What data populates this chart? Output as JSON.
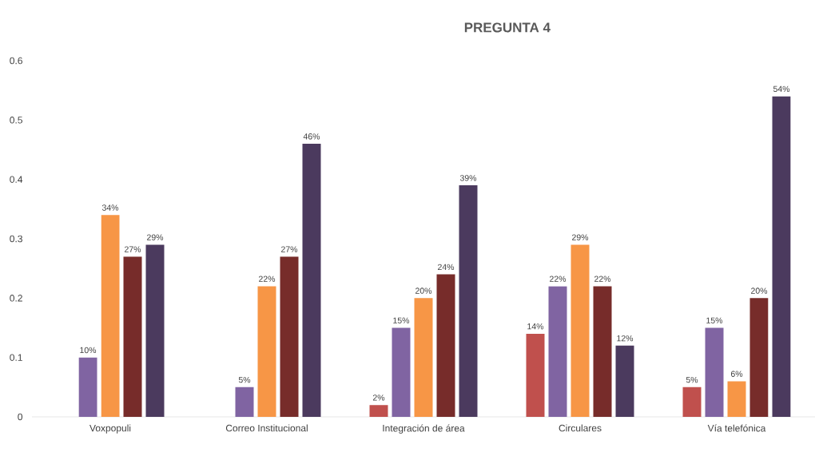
{
  "chart_data": {
    "type": "bar",
    "title": "PREGUNTA 4",
    "categories": [
      "Voxpopuli",
      "Correo Institucional",
      "Integración de área",
      "Circulares",
      "Vía telefónica"
    ],
    "series": [
      {
        "color": "#c0504d",
        "values": [
          null,
          null,
          0.02,
          0.14,
          0.05
        ],
        "value_labels": [
          null,
          null,
          "2%",
          "14%",
          "5%"
        ]
      },
      {
        "color": "#8064a2",
        "values": [
          0.1,
          0.05,
          0.15,
          0.22,
          0.15
        ],
        "value_labels": [
          "10%",
          "5%",
          "15%",
          "22%",
          "15%"
        ]
      },
      {
        "color": "#f79646",
        "values": [
          0.34,
          0.22,
          0.2,
          0.29,
          0.06
        ],
        "value_labels": [
          "34%",
          "22%",
          "20%",
          "29%",
          "6%"
        ]
      },
      {
        "color": "#772c2a",
        "values": [
          0.27,
          0.27,
          0.24,
          0.22,
          0.2
        ],
        "value_labels": [
          "27%",
          "27%",
          "24%",
          "22%",
          "20%"
        ]
      },
      {
        "color": "#4b3a5e",
        "values": [
          0.29,
          0.46,
          0.39,
          0.12,
          0.54
        ],
        "value_labels": [
          "29%",
          "46%",
          "39%",
          "12%",
          "54%"
        ]
      }
    ],
    "ylim": [
      0,
      0.6
    ],
    "yticks": [
      0,
      0.1,
      0.2,
      0.3,
      0.4,
      0.5,
      0.6
    ]
  }
}
